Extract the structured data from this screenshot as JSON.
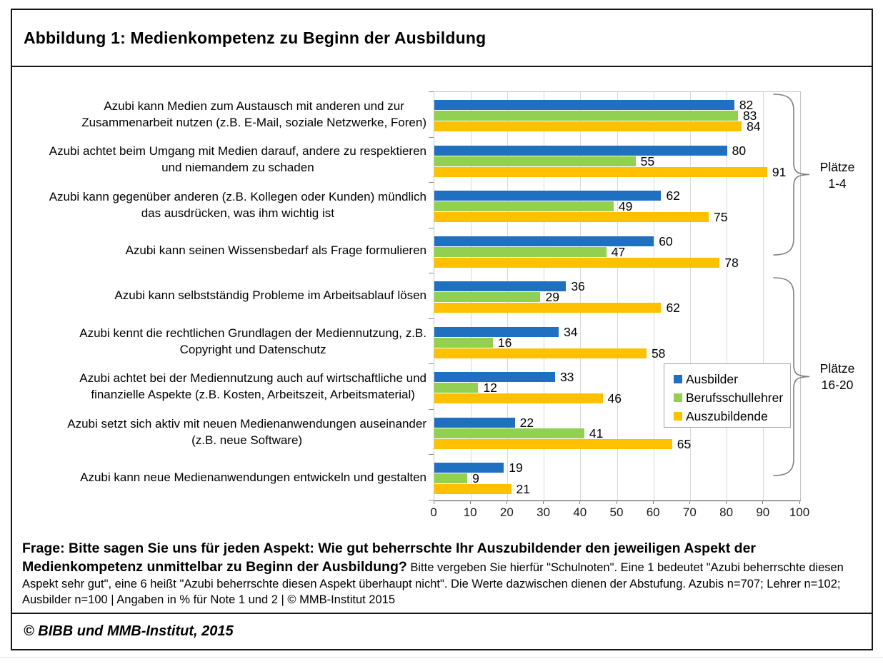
{
  "page": {
    "title": "Abbildung 1: Medienkompetenz zu Beginn der Ausbildung",
    "note_bold": "Frage: Bitte sagen Sie uns für jeden Aspekt: Wie gut beherrschte Ihr Auszubildender den jeweiligen Aspekt der Medienkompetenz unmittelbar zu Beginn der Ausbildung?",
    "note_regular": "Bitte vergeben Sie hierfür \"Schulnoten\". Eine 1 bedeutet \"Azubi beherrschte diesen Aspekt sehr gut\", eine 6 heißt \"Azubi beherrschte diesen Aspekt überhaupt nicht\". Die Werte dazwischen dienen der Abstufung. Azubis n=707; Lehrer n=102; Ausbilder n=100 | Angaben in % für Note 1 und 2 | © MMB-Institut 2015",
    "footer": "© BIBB und MMB-Institut, 2015"
  },
  "chart_data": {
    "type": "bar",
    "orientation": "horizontal",
    "title": "Medienkompetenz zu Beginn der Ausbildung",
    "xlabel": "",
    "ylabel": "",
    "xlim": [
      0,
      100
    ],
    "xticks": [
      0,
      10,
      20,
      30,
      40,
      50,
      60,
      70,
      80,
      90,
      100
    ],
    "grid": "vertical",
    "legend_position": "inside-right",
    "value_labels": true,
    "categories": [
      [
        "Azubi kann Medien zum Austausch mit anderen und zur",
        "Zusammenarbeit nutzen (z.B. E-Mail, soziale Netzwerke, Foren)"
      ],
      [
        "Azubi achtet beim Umgang mit Medien darauf, andere zu respektieren",
        "und niemandem zu schaden"
      ],
      [
        "Azubi kann gegenüber anderen (z.B. Kollegen oder Kunden) mündlich",
        "das ausdrücken, was ihm wichtig ist"
      ],
      [
        "Azubi kann seinen Wissensbedarf als Frage formulieren"
      ],
      [
        "Azubi  kann selbstständig Probleme im Arbeitsablauf lösen"
      ],
      [
        "Azubi kennt die rechtlichen Grundlagen der Mediennutzung, z.B.",
        "Copyright und Datenschutz"
      ],
      [
        "Azubi achtet bei der Mediennutzung auch auf wirtschaftliche und",
        "finanzielle Aspekte (z.B. Kosten, Arbeitszeit, Arbeitsmaterial)"
      ],
      [
        "Azubi setzt sich aktiv mit neuen Medienanwendungen auseinander",
        "(z.B. neue Software)"
      ],
      [
        "Azubi kann neue Medienanwendungen entwickeln und gestalten"
      ]
    ],
    "series": [
      {
        "name": "Ausbilder",
        "color": "#1F70C1",
        "values": [
          82,
          80,
          62,
          60,
          36,
          34,
          33,
          22,
          19
        ]
      },
      {
        "name": "Berufsschullehrer",
        "color": "#92D050",
        "values": [
          83,
          55,
          49,
          47,
          29,
          16,
          12,
          41,
          9
        ]
      },
      {
        "name": "Auszubildende",
        "color": "#FFC000",
        "values": [
          84,
          91,
          75,
          78,
          62,
          58,
          46,
          65,
          21
        ]
      }
    ],
    "annotations": [
      {
        "line1": "Plätze",
        "line2": "1-4",
        "rows": [
          0,
          3
        ]
      },
      {
        "line1": "Plätze",
        "line2": "16-20",
        "rows": [
          4,
          8
        ]
      }
    ]
  }
}
